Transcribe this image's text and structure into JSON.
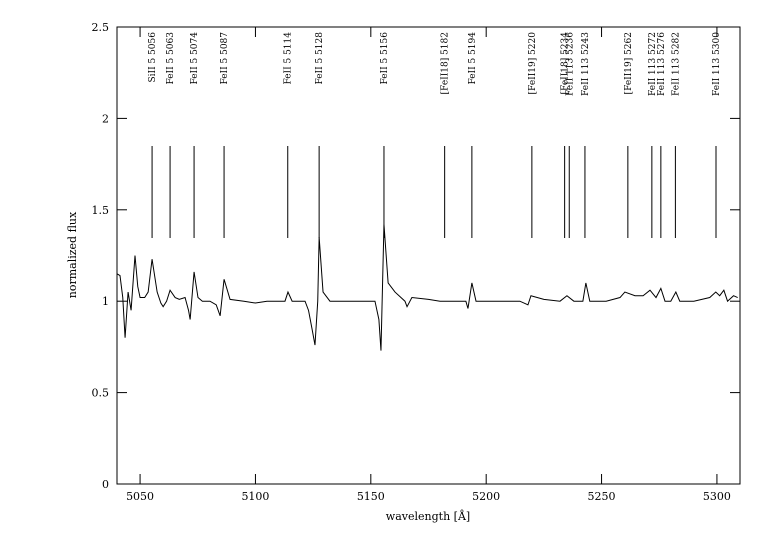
{
  "chart_data": {
    "type": "line",
    "xlabel": "wavelength [Å]",
    "ylabel": "normalized flux",
    "xlim": [
      5040,
      5310
    ],
    "ylim": [
      0,
      2.5
    ],
    "xticks": [
      5050,
      5100,
      5150,
      5200,
      5250,
      5300
    ],
    "yticks": [
      0,
      0.5,
      1,
      1.5,
      2,
      2.5
    ],
    "color": "#000000",
    "x": [
      5040,
      5041.3,
      5042.5,
      5043.5,
      5044.8,
      5046.1,
      5047.8,
      5049,
      5050,
      5052,
      5053.5,
      5055.2,
      5057.4,
      5059,
      5060,
      5061.5,
      5063,
      5065.2,
      5067,
      5069.5,
      5071,
      5071.7,
      5073.4,
      5075.1,
      5077,
      5080.3,
      5083,
      5084.7,
      5086.4,
      5089,
      5095,
      5100,
      5105,
      5110,
      5112.8,
      5114.1,
      5115.9,
      5118,
      5121.5,
      5123,
      5124.5,
      5125.8,
      5127,
      5127.6,
      5129.3,
      5132.3,
      5140,
      5148,
      5151.8,
      5153.5,
      5154.4,
      5155.7,
      5157.5,
      5160.5,
      5164.8,
      5165.7,
      5167.8,
      5175,
      5180,
      5186,
      5191.2,
      5192.1,
      5193.8,
      5195.6,
      5205,
      5214.6,
      5218.1,
      5219.4,
      5225,
      5232,
      5235,
      5238,
      5241.9,
      5243.2,
      5244.9,
      5252,
      5258,
      5260.1,
      5264.5,
      5268,
      5271,
      5273.6,
      5275.7,
      5277.5,
      5280,
      5282.2,
      5283.9,
      5290,
      5296.9,
      5299.5,
      5301.2,
      5303,
      5304.6,
      5307.2,
      5309
    ],
    "values": [
      1.15,
      1.14,
      1.02,
      0.8,
      1.05,
      0.95,
      1.25,
      1.08,
      1.02,
      1.02,
      1.05,
      1.23,
      1.05,
      0.99,
      0.97,
      1.0,
      1.06,
      1.02,
      1.01,
      1.02,
      0.95,
      0.9,
      1.16,
      1.02,
      1.0,
      1.0,
      0.98,
      0.92,
      1.12,
      1.01,
      1.0,
      0.99,
      1.0,
      1.0,
      1.0,
      1.05,
      1.0,
      1.0,
      1.0,
      0.95,
      0.85,
      0.76,
      1.0,
      1.35,
      1.05,
      1.0,
      1.0,
      1.0,
      1.0,
      0.9,
      0.73,
      1.42,
      1.1,
      1.05,
      1.0,
      0.97,
      1.02,
      1.01,
      1.0,
      1.0,
      1.0,
      0.96,
      1.1,
      1.0,
      1.0,
      1.0,
      0.98,
      1.03,
      1.01,
      1.0,
      1.03,
      1.0,
      1.0,
      1.1,
      1.0,
      1.0,
      1.02,
      1.05,
      1.03,
      1.03,
      1.06,
      1.02,
      1.07,
      1.0,
      1.0,
      1.05,
      1.0,
      1.0,
      1.02,
      1.05,
      1.03,
      1.06,
      1.0,
      1.03,
      1.02
    ],
    "annotations": [
      {
        "label": "SiII 5 5056",
        "x": 5055.2
      },
      {
        "label": "FeII 5 5063",
        "x": 5063
      },
      {
        "label": "FeII 5 5074",
        "x": 5073.4
      },
      {
        "label": "FeII 5 5087",
        "x": 5086.4
      },
      {
        "label": "FeII 5 5114",
        "x": 5114
      },
      {
        "label": "FeII 5 5128",
        "x": 5127.6
      },
      {
        "label": "FeII 5 5156",
        "x": 5155.7
      },
      {
        "label": "[FeII18] 5182",
        "x": 5182
      },
      {
        "label": "FeII 5 5194",
        "x": 5193.8
      },
      {
        "label": "[FeII19] 5220",
        "x": 5219.8
      },
      {
        "label": "[FeII18] 5234",
        "x": 5234
      },
      {
        "label": "FeII 113 5236",
        "x": 5236
      },
      {
        "label": "FeII 113 5243",
        "x": 5242.8
      },
      {
        "label": "[FeII19] 5262",
        "x": 5261.4
      },
      {
        "label": "FeII 113 5272",
        "x": 5271.8
      },
      {
        "label": "FeII 113 5276",
        "x": 5275.7
      },
      {
        "label": "FeII 113 5282",
        "x": 5282
      },
      {
        "label": "FeII 113 5300",
        "x": 5299.6
      }
    ]
  }
}
